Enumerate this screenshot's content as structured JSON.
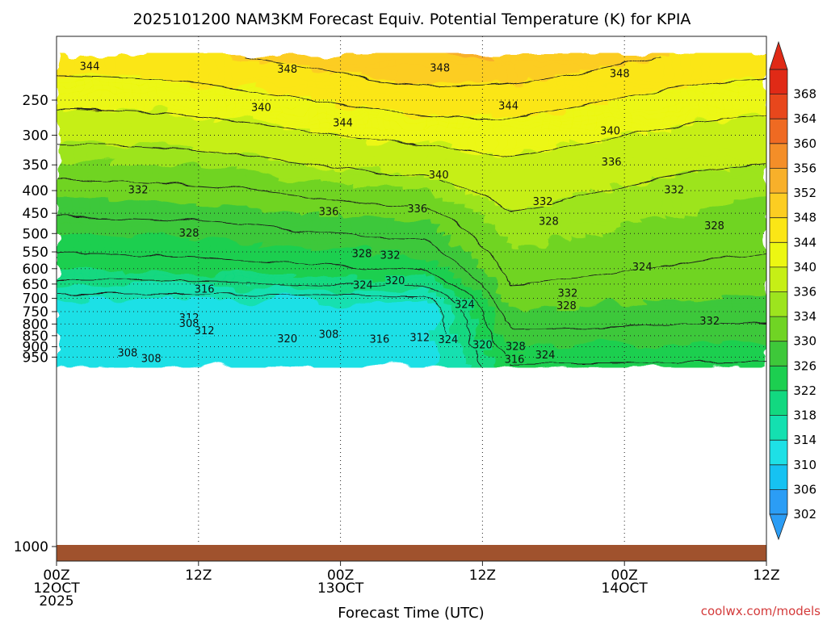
{
  "chart_data": {
    "type": "heatmap",
    "title": "2025101200 NAM3KM Forecast Equiv. Potential Temperature (K) for KPIA",
    "xlabel": "Forecast Time (UTC)",
    "ylabel": "",
    "credit": "coolwx.com/models",
    "x_range_hours": [
      0,
      60
    ],
    "x_ticks": [
      {
        "hour": 0,
        "lines": [
          "00Z",
          "12OCT",
          "2025"
        ]
      },
      {
        "hour": 12,
        "lines": [
          "12Z"
        ]
      },
      {
        "hour": 24,
        "lines": [
          "00Z",
          "13OCT"
        ]
      },
      {
        "hour": 36,
        "lines": [
          "12Z"
        ]
      },
      {
        "hour": 48,
        "lines": [
          "00Z",
          "14OCT"
        ]
      },
      {
        "hour": 60,
        "lines": [
          "12Z"
        ]
      }
    ],
    "y_axis": {
      "scale": "log",
      "reversed": true,
      "range": [
        200,
        1000
      ]
    },
    "y_ticks": [
      250,
      300,
      350,
      400,
      450,
      500,
      550,
      600,
      650,
      700,
      750,
      800,
      850,
      900,
      950,
      1000
    ],
    "grid": true,
    "colorbar": {
      "levels": [
        302,
        306,
        310,
        314,
        318,
        322,
        326,
        330,
        334,
        336,
        340,
        344,
        348,
        352,
        356,
        360,
        364,
        368
      ],
      "colors": [
        "#2b9df5",
        "#16c2f2",
        "#1ee0e6",
        "#14e0b0",
        "#12d880",
        "#1ccf50",
        "#3ec83a",
        "#70d424",
        "#9de41e",
        "#c6ef16",
        "#ecf712",
        "#fbe616",
        "#fccd22",
        "#f8b02a",
        "#f48e28",
        "#ef6a22",
        "#e8471c",
        "#e02a16"
      ],
      "placement": "right"
    },
    "contour_labels": [
      {
        "hour": 2.8,
        "p": 210,
        "v": "344"
      },
      {
        "hour": 19.5,
        "p": 213,
        "v": "348"
      },
      {
        "hour": 32.4,
        "p": 212,
        "v": "348"
      },
      {
        "hour": 47.6,
        "p": 218,
        "v": "348"
      },
      {
        "hour": 17.3,
        "p": 260,
        "v": "340"
      },
      {
        "hour": 38.2,
        "p": 258,
        "v": "344"
      },
      {
        "hour": 24.2,
        "p": 282,
        "v": "344"
      },
      {
        "hour": 46.8,
        "p": 294,
        "v": "340"
      },
      {
        "hour": 32.3,
        "p": 369,
        "v": "340"
      },
      {
        "hour": 46.9,
        "p": 345,
        "v": "336"
      },
      {
        "hour": 6.9,
        "p": 399,
        "v": "332"
      },
      {
        "hour": 52.2,
        "p": 399,
        "v": "332"
      },
      {
        "hour": 41.1,
        "p": 424,
        "v": "332"
      },
      {
        "hour": 23.0,
        "p": 447,
        "v": "336"
      },
      {
        "hour": 30.5,
        "p": 440,
        "v": "336"
      },
      {
        "hour": 41.6,
        "p": 470,
        "v": "328"
      },
      {
        "hour": 55.6,
        "p": 481,
        "v": "328"
      },
      {
        "hour": 11.2,
        "p": 499,
        "v": "328"
      },
      {
        "hour": 25.8,
        "p": 556,
        "v": "328"
      },
      {
        "hour": 28.2,
        "p": 560,
        "v": "332"
      },
      {
        "hour": 49.5,
        "p": 596,
        "v": "324"
      },
      {
        "hour": 28.6,
        "p": 640,
        "v": "320"
      },
      {
        "hour": 25.9,
        "p": 654,
        "v": "324"
      },
      {
        "hour": 12.5,
        "p": 668,
        "v": "316"
      },
      {
        "hour": 43.2,
        "p": 683,
        "v": "332"
      },
      {
        "hour": 43.1,
        "p": 729,
        "v": "328"
      },
      {
        "hour": 34.5,
        "p": 724,
        "v": "324"
      },
      {
        "hour": 11.2,
        "p": 775,
        "v": "312"
      },
      {
        "hour": 11.2,
        "p": 799,
        "v": "308"
      },
      {
        "hour": 55.2,
        "p": 788,
        "v": "332"
      },
      {
        "hour": 12.5,
        "p": 830,
        "v": "312"
      },
      {
        "hour": 23.0,
        "p": 845,
        "v": "308"
      },
      {
        "hour": 19.5,
        "p": 865,
        "v": "320"
      },
      {
        "hour": 27.3,
        "p": 866,
        "v": "316"
      },
      {
        "hour": 30.7,
        "p": 859,
        "v": "312"
      },
      {
        "hour": 33.1,
        "p": 868,
        "v": "324"
      },
      {
        "hour": 36.0,
        "p": 893,
        "v": "320"
      },
      {
        "hour": 38.8,
        "p": 901,
        "v": "328"
      },
      {
        "hour": 6.0,
        "p": 931,
        "v": "308"
      },
      {
        "hour": 8.0,
        "p": 958,
        "v": "308"
      },
      {
        "hour": 38.7,
        "p": 962,
        "v": "316"
      },
      {
        "hour": 41.3,
        "p": 941,
        "v": "324"
      }
    ]
  }
}
